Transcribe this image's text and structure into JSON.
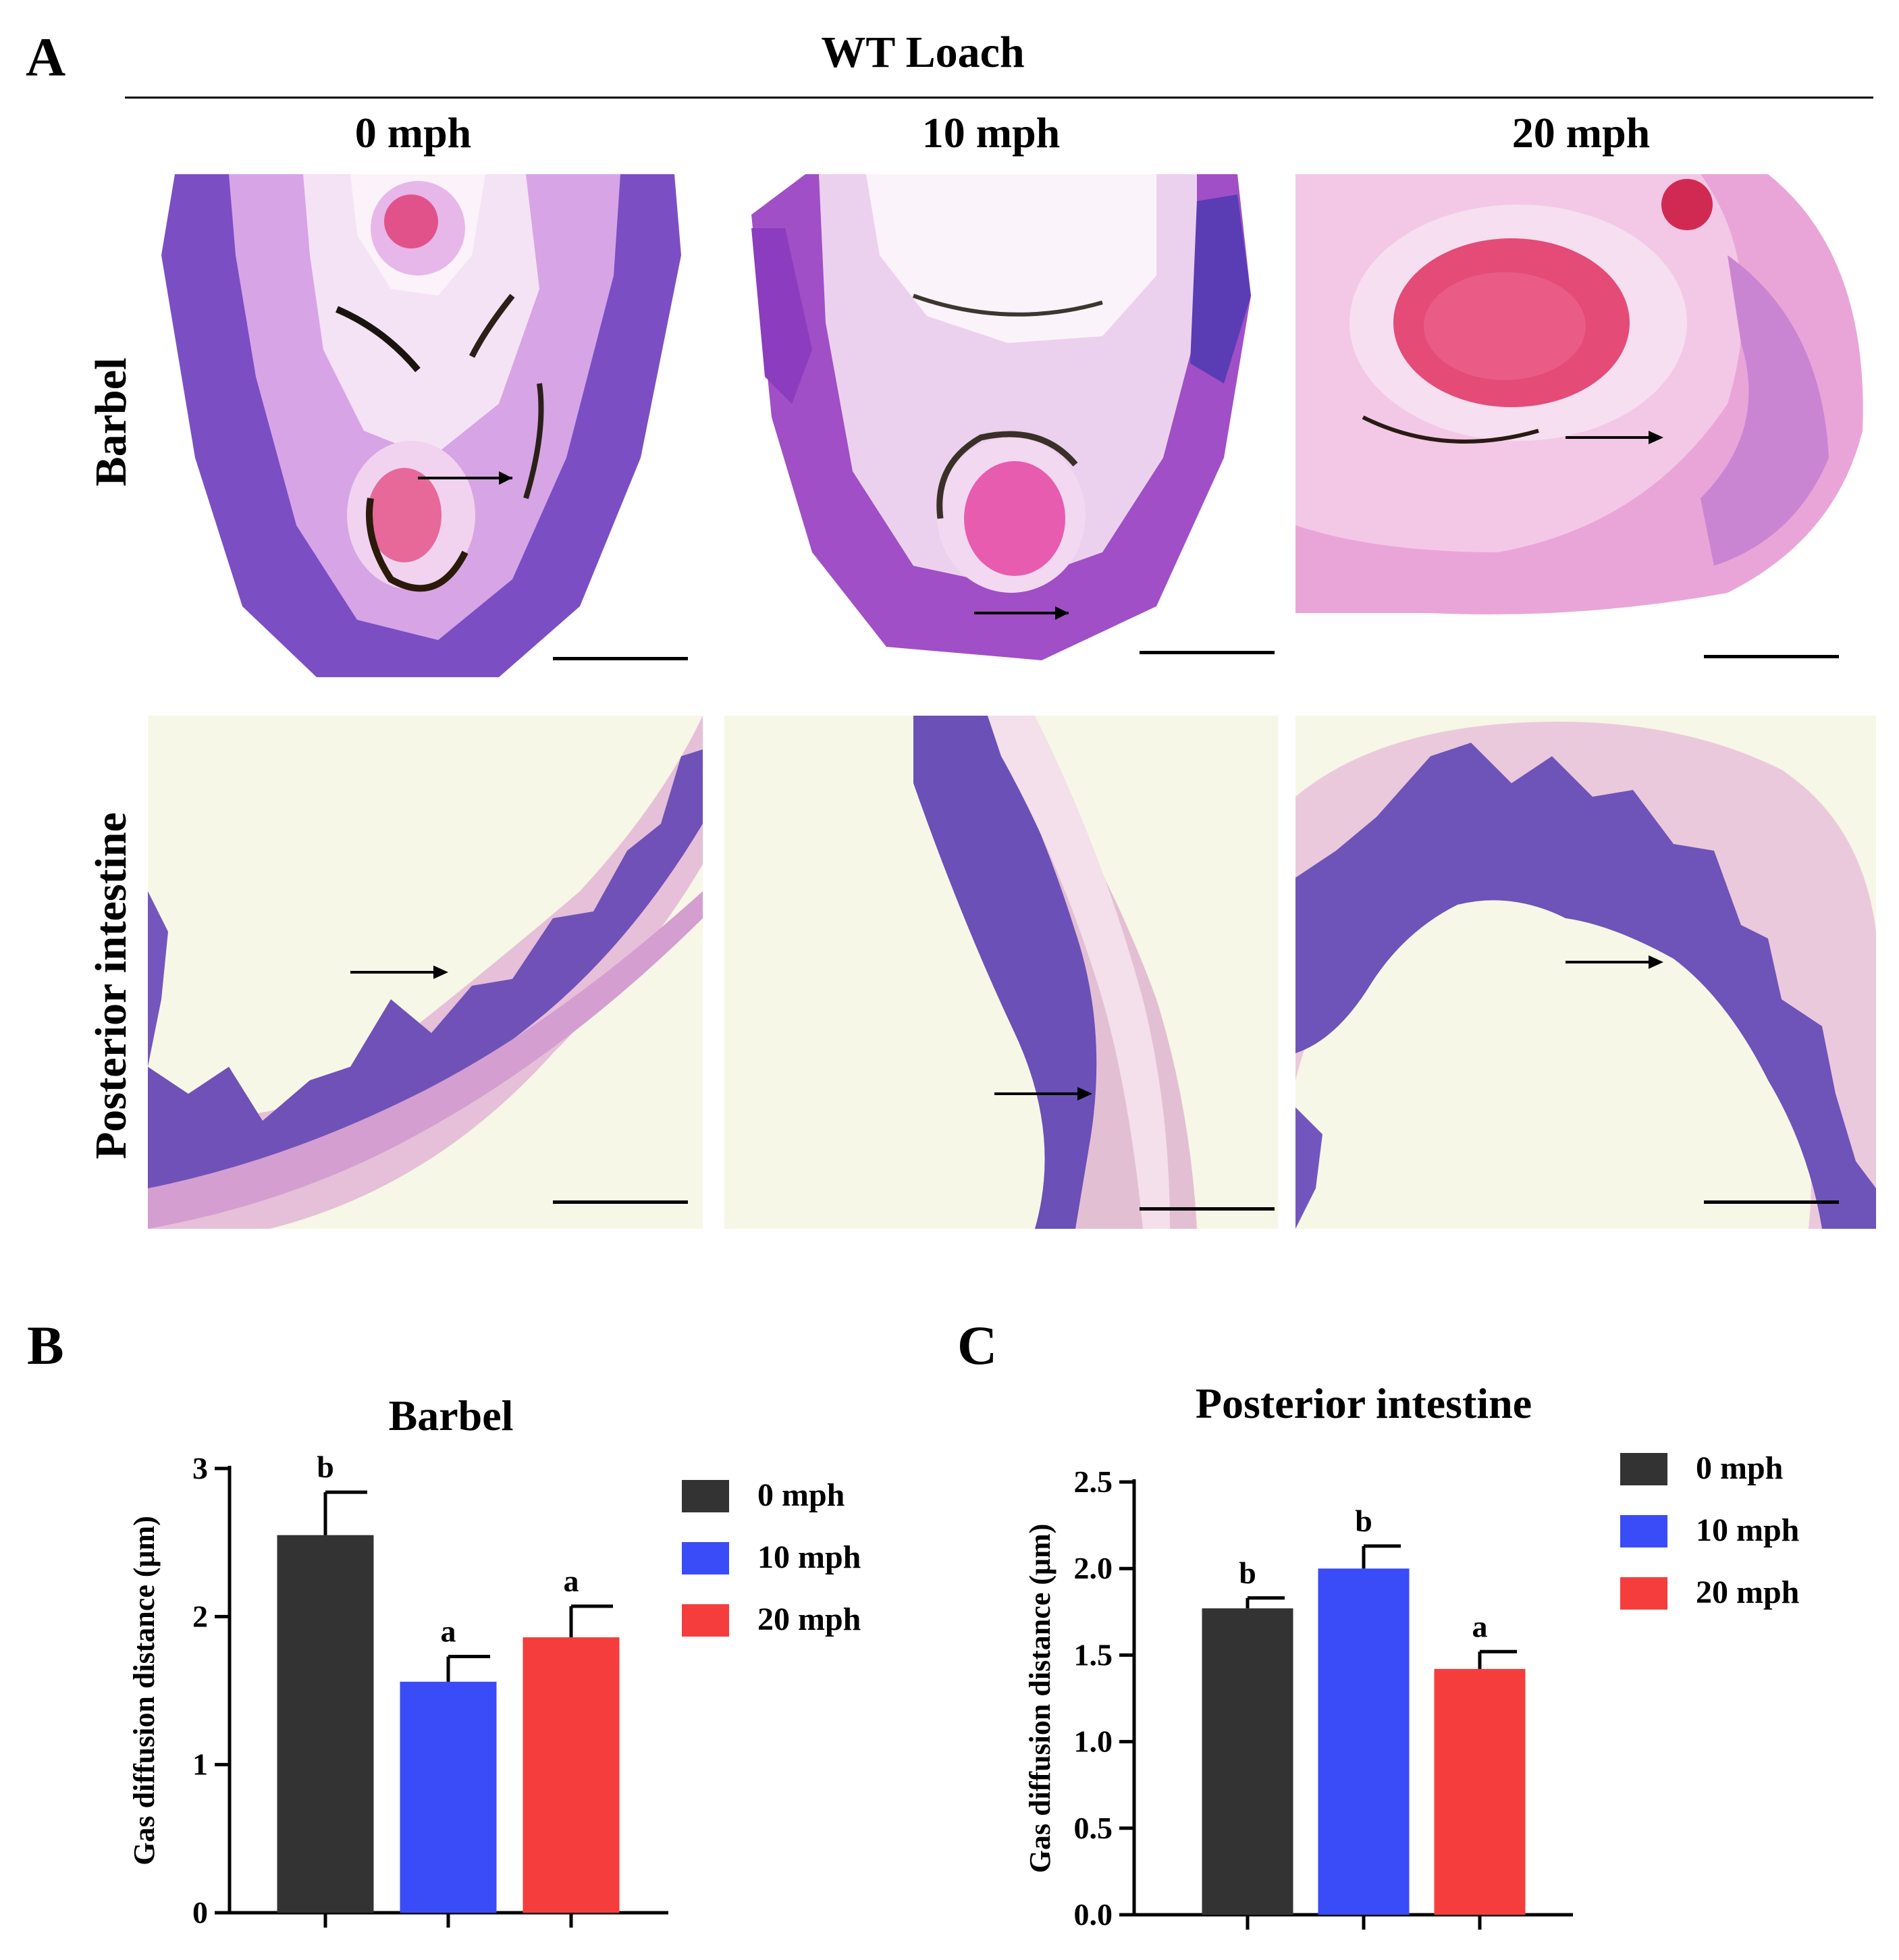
{
  "panel_a": {
    "letter": "A",
    "group_title": "WT Loach",
    "columns": [
      "0 mph",
      "10 mph",
      "20 mph"
    ],
    "rows": [
      "Barbel",
      "Posterior intestine"
    ],
    "colors": {
      "tissue_stain_purple": "#6a3fb0",
      "tissue_stain_pink": "#e8a9dc",
      "blood_red": "#e0306a",
      "intestine_background": "#f6f7e6"
    }
  },
  "chart_data": [
    {
      "id": "B",
      "letter": "B",
      "type": "bar",
      "title": "Barbel",
      "ylabel": "Gas diffusion distance (μm)",
      "xlabel": "",
      "ylim": [
        0,
        3
      ],
      "yticks": [
        0,
        1,
        2,
        3
      ],
      "ytick_labels": [
        "0",
        "1",
        "2",
        "3"
      ],
      "categories": [
        "0 mph",
        "10 mph",
        "20 mph"
      ],
      "values": [
        2.55,
        1.56,
        1.86
      ],
      "errors": [
        0.29,
        0.17,
        0.21
      ],
      "significance": [
        "b",
        "a",
        "a"
      ],
      "colors": [
        "#333333",
        "#3a4cf7",
        "#f53d3d"
      ],
      "legend": [
        "0 mph",
        "10 mph",
        "20 mph"
      ],
      "legend_position": "right"
    },
    {
      "id": "C",
      "letter": "C",
      "type": "bar",
      "title": "Posterior intestine",
      "ylabel": "Gas diffusion distance (μm)",
      "xlabel": "",
      "ylim": [
        0,
        2.5
      ],
      "yticks": [
        0,
        0.5,
        1.0,
        1.5,
        2.0,
        2.5
      ],
      "ytick_labels": [
        "0.0",
        "0.5",
        "1.0",
        "1.5",
        "2.0",
        "2.5"
      ],
      "categories": [
        "0 mph",
        "10 mph",
        "20 mph"
      ],
      "values": [
        1.77,
        2.0,
        1.42
      ],
      "errors": [
        0.06,
        0.13,
        0.1
      ],
      "significance": [
        "b",
        "b",
        "a"
      ],
      "colors": [
        "#333333",
        "#3a4cf7",
        "#f53d3d"
      ],
      "legend": [
        "0 mph",
        "10 mph",
        "20 mph"
      ],
      "legend_position": "right"
    }
  ]
}
